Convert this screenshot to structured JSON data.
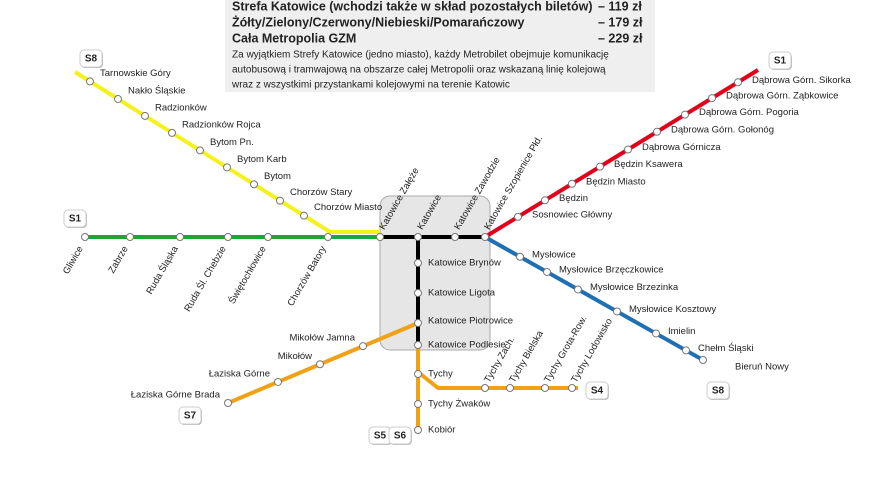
{
  "header": {
    "fares": [
      {
        "zone": "Strefa Katowice (wchodzi także w skład pozostałych biletów)",
        "price": "– 119 zł"
      },
      {
        "zone": "Żółty/Zielony/Czerwony/Niebieski/Pomarańczowy",
        "price": "– 179 zł"
      },
      {
        "zone": "Cała Metropolia GZM",
        "price": "– 229 zł"
      }
    ],
    "note": [
      "Za wyjątkiem Strefy Katowice (jedno miasto), każdy Metrobilet obejmuje komunikację",
      "autobusową i tramwajową na obszarze całej Metropolii oraz wskazaną linię kolejową",
      "wraz z wszystkimi przystankami kolejowymi  na terenie Katowic"
    ]
  },
  "lines": [
    {
      "color": "#1da537",
      "badges": [
        "S1"
      ],
      "stations": [
        "Gliwice",
        "Zabrze",
        "Ruda Śląska",
        "Ruda Śl. Chebzie",
        "Świętochłowice",
        "Chorzów Batory"
      ]
    },
    {
      "color": "#f4f21a",
      "badges": [
        "S8"
      ],
      "stations": [
        "Tarnowskie Góry",
        "Nakło Śląskie",
        "Radzionków",
        "Radzionków Rojca",
        "Bytom Pn.",
        "Bytom Karb",
        "Bytom",
        "Chorzów Stary",
        "Chorzów Miasto"
      ]
    },
    {
      "color": "#000000",
      "badges": [],
      "stations": [
        "Katowice Załęże",
        "Katowice",
        "Katowice Zawodzie",
        "Katowice Szopienice Płd.",
        "Katowice Brynów",
        "Katowice Ligota",
        "Katowice Piotrowice",
        "Katowice Podlesie"
      ]
    },
    {
      "color": "#e2001a",
      "badges": [
        "S1"
      ],
      "stations": [
        "Sosnowiec Główny",
        "Będzin",
        "Będzin Miasto",
        "Będzin Ksawera",
        "Dąbrowa Górnicza",
        "Dąbrowa Górn. Gołonóg",
        "Dąbrowa Górn. Pogoria",
        "Dąbrowa Górn. Ząbkowice",
        "Dąbrowa Górn. Sikorka"
      ]
    },
    {
      "color": "#1f6fb5",
      "badges": [
        "S8"
      ],
      "stations": [
        "Mysłowice",
        "Mysłowice Brzęczkowice",
        "Mysłowice Brzezinka",
        "Mysłowice Kosztowy",
        "Imielin",
        "Chełm Śląski",
        "Bieruń Nowy"
      ]
    },
    {
      "color": "#f0a116",
      "badges": [
        "S7"
      ],
      "stations": [
        "Mikołów Jamna",
        "Mikołów",
        "Łaziska Górne",
        "Łaziska Górne Brada"
      ]
    },
    {
      "color": "#f0a116",
      "badges": [
        "S4"
      ],
      "stations": [
        "Tychy Zach.",
        "Tychy Bielska",
        "Tychy Grota-Row.",
        "Tychy Lodowisko"
      ]
    },
    {
      "color": "#f0a116",
      "badges": [
        "S5",
        "S6"
      ],
      "stations": [
        "Tychy",
        "Tychy Żwaków",
        "Kobiór"
      ]
    }
  ]
}
